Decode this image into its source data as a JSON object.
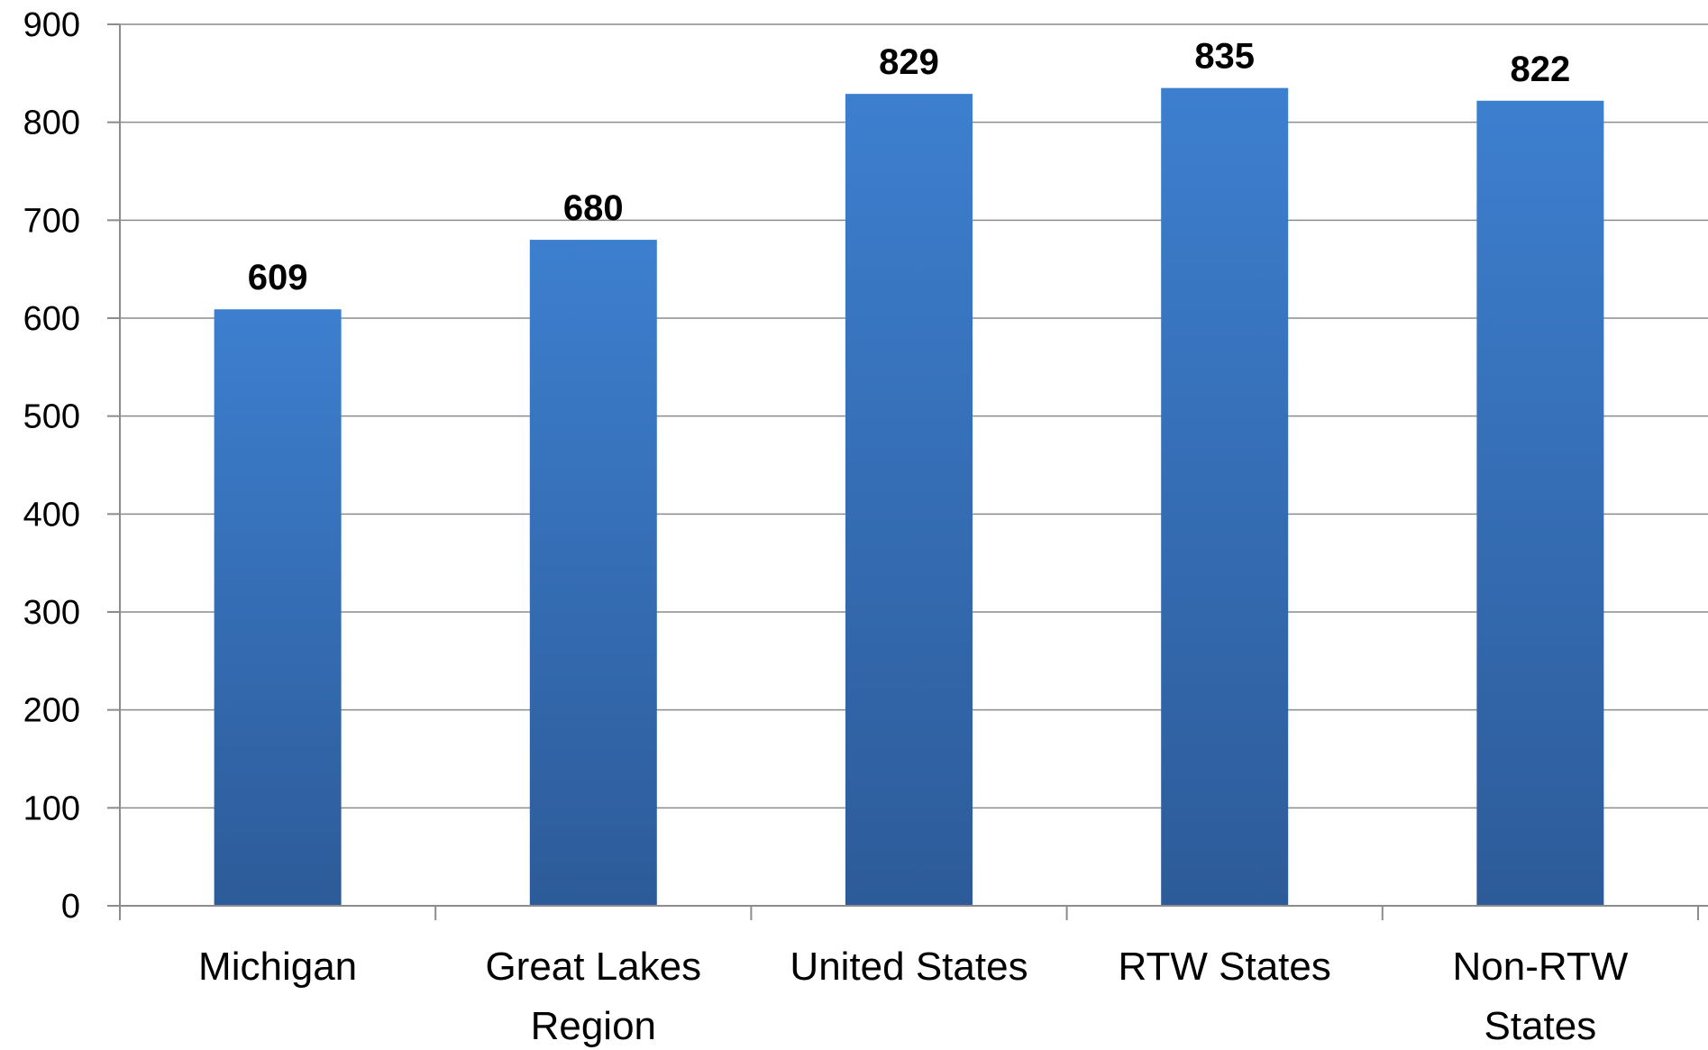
{
  "chart_data": {
    "type": "bar",
    "categories": [
      [
        "Michigan"
      ],
      [
        "Great Lakes",
        "Region"
      ],
      [
        "United States"
      ],
      [
        "RTW States"
      ],
      [
        "Non-RTW",
        "States"
      ]
    ],
    "values": [
      609,
      680,
      829,
      835,
      822
    ],
    "data_labels": [
      "609",
      "680",
      "829",
      "835",
      "822"
    ],
    "title": "",
    "xlabel": "",
    "ylabel": "",
    "ylim": [
      0,
      900
    ],
    "yticks": [
      0,
      100,
      200,
      300,
      400,
      500,
      600,
      700,
      800,
      900
    ],
    "grid": true,
    "legend": "none",
    "bar_color_top": "#3d7fcf",
    "bar_color_bottom": "#2d5b99"
  }
}
